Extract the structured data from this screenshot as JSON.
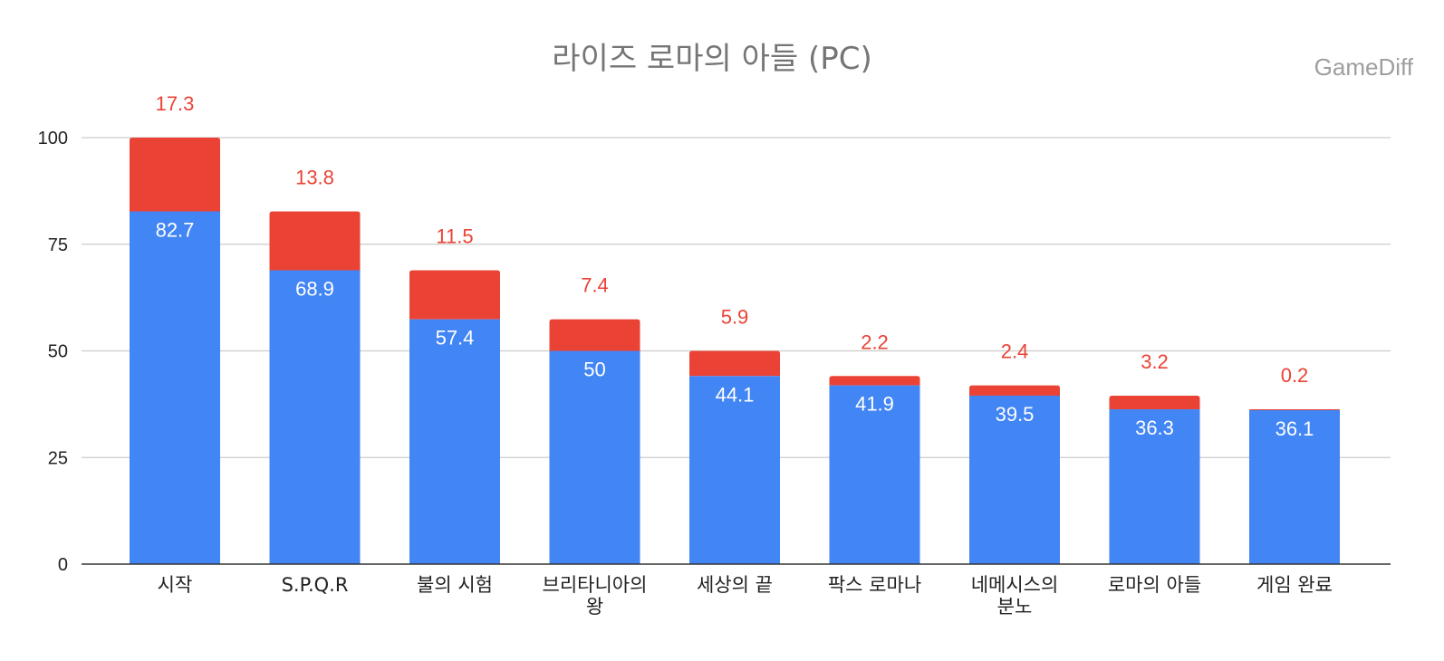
{
  "watermark": "GameDiff",
  "chart_data": {
    "type": "bar",
    "stacked": true,
    "title": "라이즈 로마의 아들 (PC)",
    "xlabel": "",
    "ylabel": "",
    "ylim": [
      0,
      100
    ],
    "yticks": [
      "0",
      "25",
      "50",
      "75",
      "100"
    ],
    "grid": true,
    "categories": [
      "시작",
      "S.P.Q.R",
      "불의 시험",
      "브리타니아의\n왕",
      "세상의 끝",
      "팍스 로마나",
      "네메시스의\n분노",
      "로마의 아들",
      "게임 완료"
    ],
    "series": [
      {
        "color": "#4285f4",
        "values": [
          82.7,
          68.9,
          57.4,
          50,
          44.1,
          41.9,
          39.5,
          36.3,
          36.1
        ],
        "labels": [
          "82.7",
          "68.9",
          "57.4",
          "50",
          "44.1",
          "41.9",
          "39.5",
          "36.3",
          "36.1"
        ]
      },
      {
        "color": "#ea4335",
        "values": [
          17.3,
          13.8,
          11.5,
          7.4,
          5.9,
          2.2,
          2.4,
          3.2,
          0.2
        ],
        "labels": [
          "17.3",
          "13.8",
          "11.5",
          "7.4",
          "5.9",
          "2.2",
          "2.4",
          "3.2",
          "0.2"
        ]
      }
    ]
  }
}
